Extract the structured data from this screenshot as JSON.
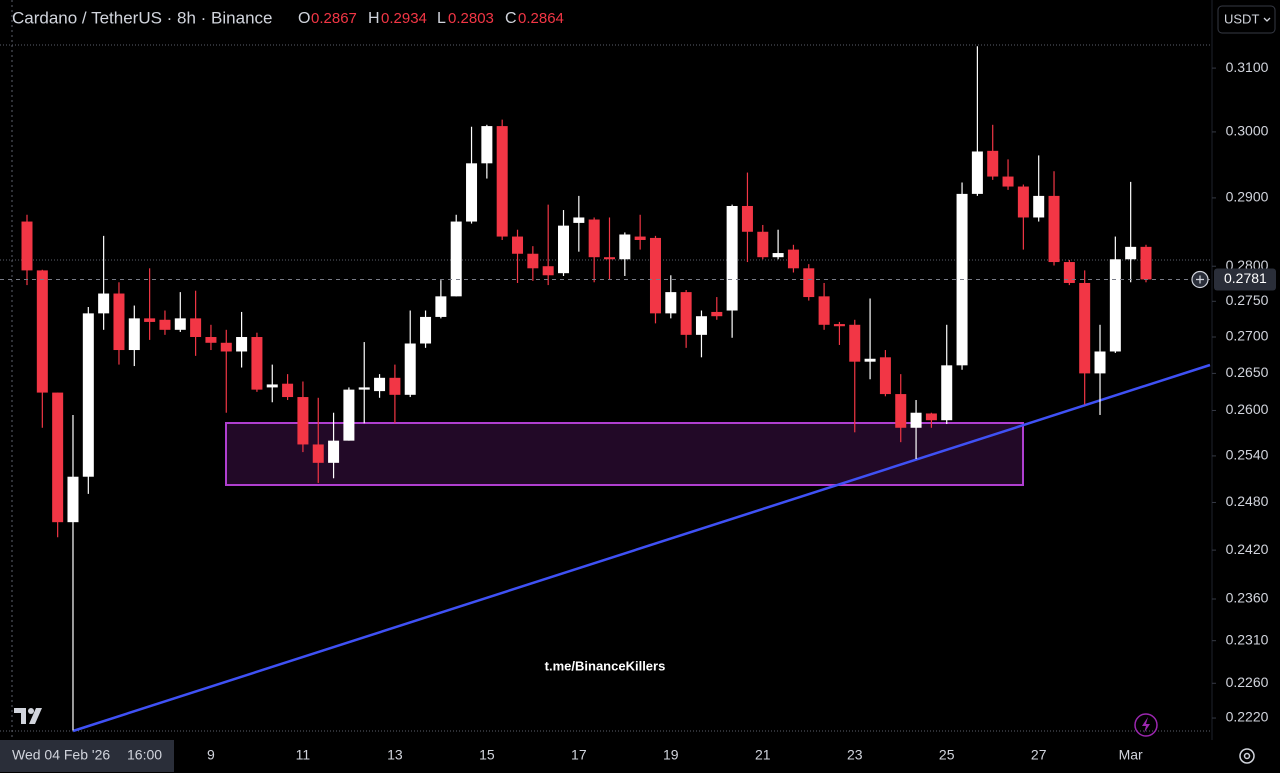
{
  "chart_data": {
    "type": "candlestick",
    "title": "Cardano / TetherUS · 8h · Binance",
    "ohlc_labels": [
      "O",
      "H",
      "L",
      "C"
    ],
    "ohlc_values": [
      0.2867,
      0.2934,
      0.2803,
      0.2864
    ],
    "currency": "USDT",
    "watermark": "t.me/BinanceKillers",
    "crosshair_date": "Wed 04 Feb '26",
    "crosshair_time": "16:00",
    "last_price": 0.2781,
    "log_scale": true,
    "grid": false,
    "up_color": "#ffffff",
    "down_color": "#f23645",
    "ylim": [
      0.2203,
      0.3137
    ],
    "yticks": [
      {
        "value": 0.31,
        "label": "0.3100"
      },
      {
        "value": 0.3,
        "label": "0.3000"
      },
      {
        "value": 0.29,
        "label": "0.2900"
      },
      {
        "value": 0.28,
        "label": "0.2800"
      },
      {
        "value": 0.275,
        "label": "0.2750"
      },
      {
        "value": 0.27,
        "label": "0.2700"
      },
      {
        "value": 0.265,
        "label": "0.2650"
      },
      {
        "value": 0.26,
        "label": "0.2600"
      },
      {
        "value": 0.254,
        "label": "0.2540"
      },
      {
        "value": 0.248,
        "label": "0.2480"
      },
      {
        "value": 0.242,
        "label": "0.2420"
      },
      {
        "value": 0.236,
        "label": "0.2360"
      },
      {
        "value": 0.231,
        "label": "0.2310"
      },
      {
        "value": 0.226,
        "label": "0.2260"
      },
      {
        "value": 0.222,
        "label": "0.2220"
      }
    ],
    "categories": [
      null,
      null,
      null,
      null,
      null,
      null,
      null,
      null,
      null,
      null,
      null,
      null,
      "9",
      null,
      null,
      null,
      null,
      null,
      "11",
      null,
      null,
      null,
      null,
      null,
      "13",
      null,
      null,
      null,
      null,
      null,
      "15",
      null,
      null,
      null,
      null,
      null,
      "17",
      null,
      null,
      null,
      null,
      null,
      "19",
      null,
      null,
      null,
      null,
      null,
      "21",
      null,
      null,
      null,
      null,
      null,
      "23",
      null,
      null,
      null,
      null,
      null,
      "25",
      null,
      null,
      null,
      null,
      null,
      "27",
      null,
      null,
      null,
      null,
      null,
      "Mar",
      null
    ],
    "open": [
      0.2865,
      0.2794,
      0.2624,
      0.2455,
      0.2513,
      0.2733,
      0.2761,
      0.2682,
      0.2726,
      0.2724,
      0.271,
      0.2726,
      0.27,
      0.2692,
      0.268,
      0.27,
      0.2631,
      0.2636,
      0.2618,
      0.2555,
      0.2531,
      0.256,
      0.2628,
      0.2626,
      0.2644,
      0.2621,
      0.2691,
      0.2728,
      0.2757,
      0.2865,
      0.2952,
      0.3009,
      0.2843,
      0.2818,
      0.28,
      0.279,
      0.2863,
      0.2868,
      0.2813,
      0.281,
      0.2843,
      0.2841,
      0.2733,
      0.2763,
      0.2703,
      0.2735,
      0.2737,
      0.2888,
      0.285,
      0.2813,
      0.2824,
      0.2797,
      0.2757,
      0.2718,
      0.2717,
      0.2666,
      0.2672,
      0.2622,
      0.2577,
      0.2596,
      0.2587,
      0.2661,
      0.2906,
      0.2971,
      0.2932,
      0.2917,
      0.2871,
      0.2903,
      0.2806,
      0.2776,
      0.265,
      0.268,
      0.281,
      0.2828
    ],
    "high": [
      0.2875,
      0.2795,
      0.2624,
      0.2594,
      0.2742,
      0.2844,
      0.2777,
      0.2744,
      0.2797,
      0.2737,
      0.2763,
      0.2765,
      0.2717,
      0.271,
      0.2735,
      0.2706,
      0.2662,
      0.2649,
      0.2639,
      0.2617,
      0.2597,
      0.2631,
      0.2693,
      0.2649,
      0.2662,
      0.2737,
      0.2737,
      0.278,
      0.2875,
      0.3008,
      0.3011,
      0.3019,
      0.2853,
      0.2829,
      0.289,
      0.2882,
      0.2903,
      0.2871,
      0.2871,
      0.2849,
      0.2875,
      0.2844,
      0.2787,
      0.2766,
      0.2737,
      0.2756,
      0.289,
      0.2938,
      0.286,
      0.2853,
      0.2831,
      0.2803,
      0.2776,
      0.2721,
      0.2724,
      0.2754,
      0.2682,
      0.2649,
      0.2614,
      0.2597,
      0.2717,
      0.2923,
      0.3135,
      0.3011,
      0.2958,
      0.292,
      0.2964,
      0.294,
      0.2809,
      0.2794,
      0.2717,
      0.2843,
      0.2924,
      0.2831
    ],
    "low": [
      0.2773,
      0.2577,
      0.2436,
      0.2206,
      0.2491,
      0.271,
      0.2662,
      0.266,
      0.2696,
      0.2703,
      0.2707,
      0.2674,
      0.2682,
      0.2597,
      0.2658,
      0.2625,
      0.2611,
      0.2614,
      0.2545,
      0.2505,
      0.2511,
      0.256,
      0.2583,
      0.2617,
      0.2583,
      0.2618,
      0.2685,
      0.2726,
      0.2757,
      0.2862,
      0.2929,
      0.2838,
      0.2776,
      0.2779,
      0.2773,
      0.2786,
      0.2821,
      0.2777,
      0.2781,
      0.2786,
      0.2824,
      0.2719,
      0.2726,
      0.2685,
      0.2672,
      0.2724,
      0.2699,
      0.2806,
      0.281,
      0.281,
      0.2791,
      0.2751,
      0.271,
      0.2689,
      0.2571,
      0.2642,
      0.2619,
      0.2558,
      0.2536,
      0.2577,
      0.2582,
      0.2655,
      0.2903,
      0.2927,
      0.2912,
      0.2824,
      0.2865,
      0.2801,
      0.2773,
      0.2608,
      0.2594,
      0.2678,
      0.2777,
      0.2777
    ],
    "close": [
      0.2794,
      0.2624,
      0.2455,
      0.2513,
      0.2733,
      0.2761,
      0.2682,
      0.2726,
      0.2721,
      0.271,
      0.2726,
      0.27,
      0.2692,
      0.268,
      0.27,
      0.2628,
      0.2635,
      0.2618,
      0.2555,
      0.2531,
      0.256,
      0.2628,
      0.2631,
      0.2644,
      0.2621,
      0.2691,
      0.2728,
      0.2757,
      0.2865,
      0.2952,
      0.3009,
      0.2843,
      0.2818,
      0.2797,
      0.2787,
      0.2859,
      0.2871,
      0.2813,
      0.281,
      0.2846,
      0.2838,
      0.2733,
      0.2763,
      0.2703,
      0.2729,
      0.2729,
      0.2888,
      0.285,
      0.2813,
      0.2819,
      0.2797,
      0.2756,
      0.2717,
      0.2715,
      0.2666,
      0.267,
      0.2622,
      0.2577,
      0.2597,
      0.2587,
      0.2661,
      0.2906,
      0.297,
      0.2932,
      0.2917,
      0.2871,
      0.2903,
      0.2806,
      0.2776,
      0.265,
      0.268,
      0.281,
      0.2828,
      0.2781
    ]
  }
}
